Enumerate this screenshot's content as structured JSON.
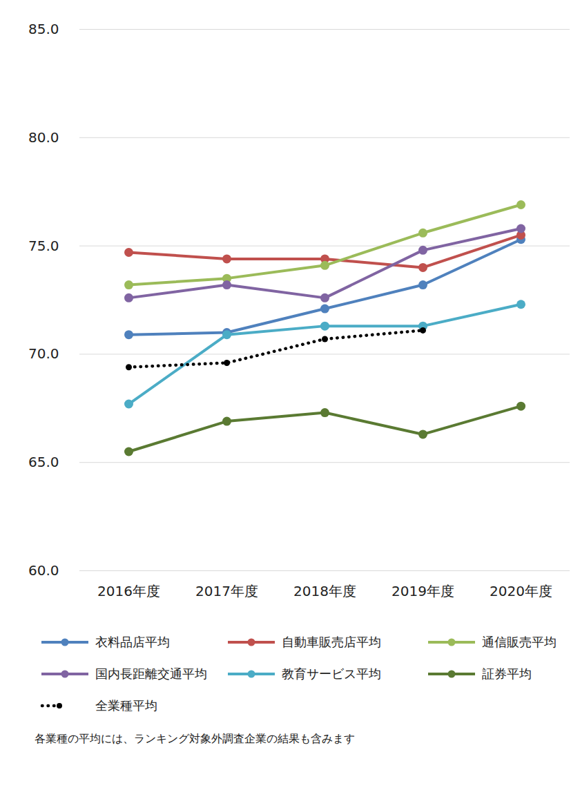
{
  "chart_data": {
    "type": "line",
    "categories": [
      "2016年度",
      "2017年度",
      "2018年度",
      "2019年度",
      "2020年度"
    ],
    "series": [
      {
        "name": "衣料品店平均",
        "color": "#4f81bd",
        "marker": "circle",
        "line_style": "solid",
        "values": [
          70.9,
          71.0,
          72.1,
          73.2,
          75.3
        ]
      },
      {
        "name": "自動車販売店平均",
        "color": "#c0504d",
        "marker": "circle",
        "line_style": "solid",
        "values": [
          74.7,
          74.4,
          74.4,
          74.0,
          75.5
        ]
      },
      {
        "name": "通信販売平均",
        "color": "#9bbb59",
        "marker": "circle",
        "line_style": "solid",
        "values": [
          73.2,
          73.5,
          74.1,
          75.6,
          76.9
        ]
      },
      {
        "name": "国内長距離交通平均",
        "color": "#8064a2",
        "marker": "circle",
        "line_style": "solid",
        "values": [
          72.6,
          73.2,
          72.6,
          74.8,
          75.8
        ]
      },
      {
        "name": "教育サービス平均",
        "color": "#4bacc6",
        "marker": "circle",
        "line_style": "solid",
        "values": [
          67.7,
          70.9,
          71.3,
          71.3,
          72.3
        ]
      },
      {
        "name": "証券平均",
        "color": "#5a7a32",
        "marker": "circle",
        "line_style": "solid",
        "values": [
          65.5,
          66.9,
          67.3,
          66.3,
          67.6
        ]
      },
      {
        "name": "全業種平均",
        "color": "#000000",
        "marker": "circle",
        "line_style": "dotted",
        "values": [
          69.4,
          69.6,
          70.7,
          71.1,
          null
        ]
      }
    ],
    "ylim": [
      60,
      85
    ],
    "yticks": [
      {
        "value": 60,
        "label": "60.0"
      },
      {
        "value": 65,
        "label": "65.0"
      },
      {
        "value": 70,
        "label": "70.0"
      },
      {
        "value": 75,
        "label": "75.0"
      },
      {
        "value": 80,
        "label": "80.0"
      },
      {
        "value": 85,
        "label": "85.0"
      }
    ],
    "grid": true,
    "legend": "bottom",
    "caption": "各業種の平均には、ランキング対象外調査企業の結果も含みます"
  }
}
